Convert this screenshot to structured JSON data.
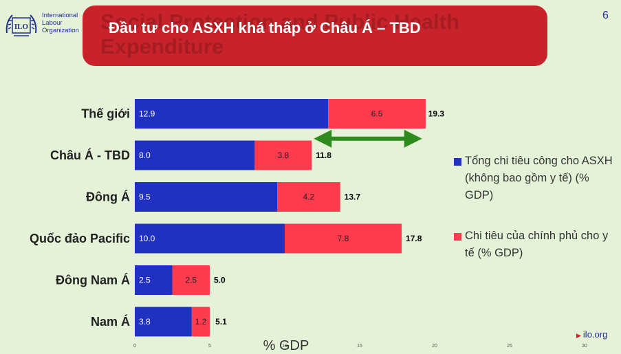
{
  "header": {
    "org_line1": "International",
    "org_line2": "Labour",
    "org_line3": "Organization",
    "logo_mark": "ILO",
    "ghost_title": "Social Protection and Public Health Expenditure",
    "title": "Đầu tư cho ASXH khá thấp ở Châu Á – TBD",
    "page_number": "6"
  },
  "colors": {
    "series1": "#2030c0",
    "series2": "#ff3b4e",
    "banner": "#c8232a",
    "arrow": "#2e8b1e",
    "background": "#e6f2d8"
  },
  "chart_data": {
    "type": "bar",
    "orientation": "horizontal",
    "stacked": true,
    "categories": [
      "Thế giới",
      "Châu Á - TBD",
      "Đông Á",
      "Quốc đảo Pacific",
      "Đông Nam Á",
      "Nam Á"
    ],
    "series": [
      {
        "name": "Tổng chi tiêu công cho ASXH (không bao gồm y tế) (% GDP)",
        "values": [
          12.9,
          8.0,
          9.5,
          10.0,
          2.5,
          3.8
        ],
        "labels": [
          "12.9",
          "8.0",
          "9.5",
          "10.0",
          "2.5",
          "3.8"
        ]
      },
      {
        "name": "Chi tiêu của chính phủ cho y tế (% GDP)",
        "values": [
          6.5,
          3.8,
          4.2,
          7.8,
          2.5,
          1.2
        ],
        "labels": [
          "6.5",
          "3.8",
          "4.2",
          "7.8",
          "2.5",
          "1.2"
        ]
      }
    ],
    "totals": [
      19.3,
      11.8,
      13.7,
      17.8,
      5.0,
      5.1
    ],
    "total_labels": [
      "19.3",
      "11.8",
      "13.7",
      "17.8",
      "5.0",
      "5.1"
    ],
    "xlim": [
      0,
      30
    ],
    "xticks": [
      "0",
      "5",
      "10",
      "15",
      "20",
      "25",
      "30"
    ],
    "xlabel": "% GDP",
    "legend_position": "right",
    "annotation": "double-headed green arrow between Châu Á - TBD total and Thế giới total"
  },
  "legend": {
    "item1": "Tổng chi tiêu công cho ASXH (không bao gồm y tế) (% GDP)",
    "item2": "Chi tiêu của chính phủ cho y tế (% GDP)"
  },
  "footer": {
    "site": "ilo.org",
    "arrow_icon": "play-triangle-icon"
  }
}
